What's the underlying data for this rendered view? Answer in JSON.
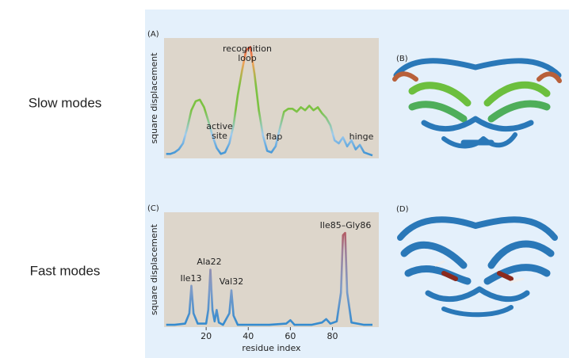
{
  "row_labels": [
    "Slow modes",
    "Fast modes"
  ],
  "images": [
    {
      "label": "(B)"
    },
    {
      "label": "(D)"
    }
  ],
  "chart_data": [
    {
      "type": "line",
      "label": "(A)",
      "ylabel": "square displacement",
      "annotations": [
        "recognition",
        "loop",
        "active",
        "site",
        "flap",
        "hinge"
      ],
      "x": [
        1,
        3,
        5,
        7,
        9,
        11,
        13,
        15,
        17,
        19,
        21,
        23,
        25,
        27,
        29,
        31,
        33,
        35,
        37,
        39,
        41,
        43,
        45,
        47,
        49,
        51,
        53,
        55,
        57,
        59,
        61,
        63,
        65,
        67,
        69,
        71,
        73,
        75,
        77,
        79,
        81,
        83,
        85,
        87,
        89,
        91,
        93,
        95,
        97,
        99
      ],
      "values": [
        0.03,
        0.03,
        0.04,
        0.06,
        0.1,
        0.2,
        0.32,
        0.38,
        0.39,
        0.34,
        0.25,
        0.15,
        0.07,
        0.03,
        0.04,
        0.1,
        0.22,
        0.42,
        0.58,
        0.72,
        0.74,
        0.56,
        0.32,
        0.15,
        0.05,
        0.04,
        0.08,
        0.2,
        0.31,
        0.33,
        0.33,
        0.31,
        0.34,
        0.32,
        0.35,
        0.32,
        0.34,
        0.3,
        0.27,
        0.22,
        0.12,
        0.1,
        0.14,
        0.08,
        0.12,
        0.06,
        0.09,
        0.04,
        0.03,
        0.02
      ],
      "colorscale": [
        "#2f8ad0",
        "#9fcbee",
        "#7cc242",
        "#7cc242",
        "#f2a05a",
        "#d9302c"
      ],
      "xlim": [
        0,
        102
      ],
      "ylim": [
        0,
        0.8
      ]
    },
    {
      "type": "line",
      "label": "(C)",
      "ylabel": "square displacement",
      "xlabel": "residue index",
      "annotations": [
        "Ile13",
        "Ala22",
        "Val32",
        "Ile85–Gly86"
      ],
      "x": [
        1,
        5,
        10,
        12,
        13,
        14,
        16,
        20,
        21,
        22,
        23,
        24,
        25,
        26,
        28,
        31,
        32,
        33,
        35,
        40,
        50,
        58,
        60,
        62,
        70,
        75,
        77,
        79,
        82,
        84,
        85,
        86,
        87,
        89,
        95,
        99
      ],
      "values": [
        0.02,
        0.02,
        0.03,
        0.12,
        0.36,
        0.12,
        0.03,
        0.03,
        0.15,
        0.5,
        0.15,
        0.05,
        0.15,
        0.04,
        0.02,
        0.12,
        0.32,
        0.1,
        0.02,
        0.02,
        0.02,
        0.03,
        0.06,
        0.02,
        0.02,
        0.04,
        0.07,
        0.03,
        0.05,
        0.3,
        0.8,
        0.82,
        0.3,
        0.04,
        0.02,
        0.02
      ],
      "colorscale": [
        "#2f8ad0",
        "#7f9cc8",
        "#a07f98",
        "#c8322a"
      ],
      "xlim": [
        0,
        102
      ],
      "ylim": [
        0,
        1
      ],
      "xticks": [
        20,
        40,
        60,
        80
      ]
    }
  ]
}
